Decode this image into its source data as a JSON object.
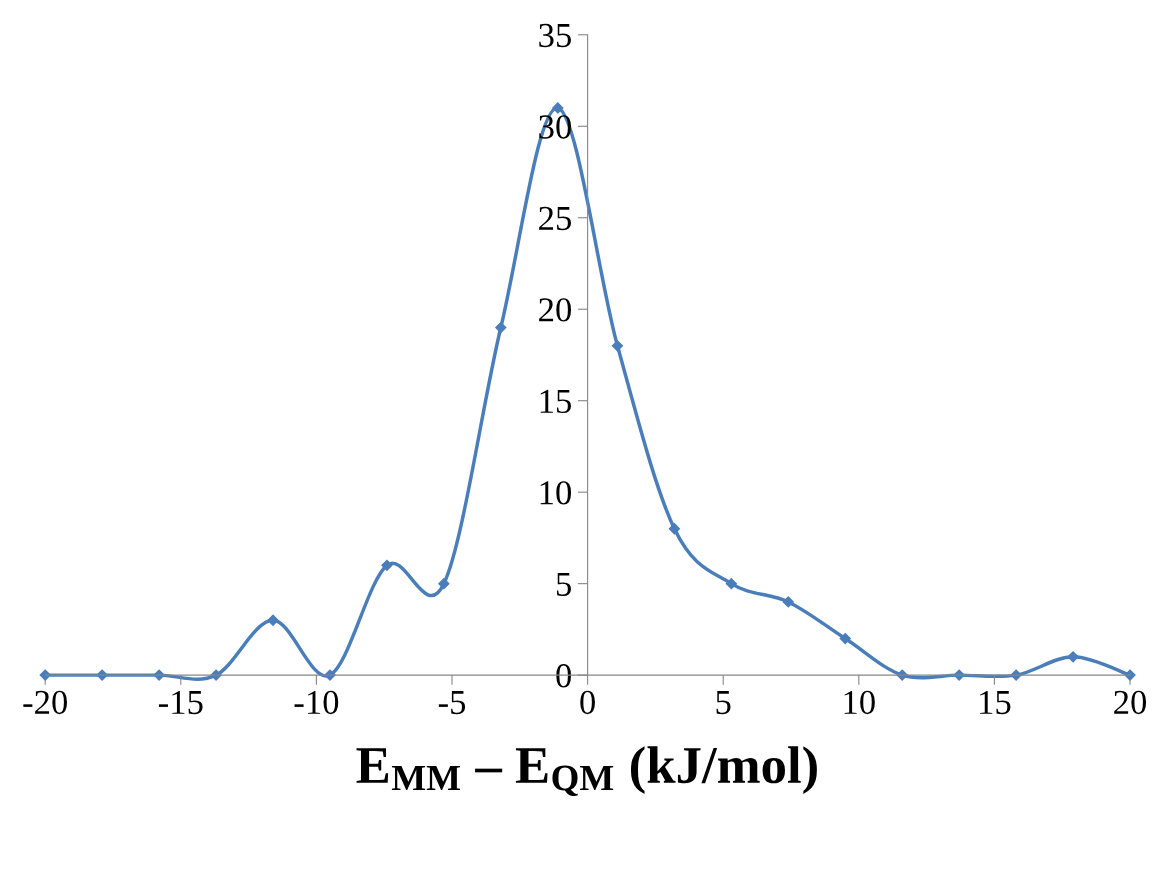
{
  "chart_data": {
    "type": "line",
    "xlabel": "E$_{MM}$ – E$_{QM}$ (kJ/mol)",
    "x": [
      -20,
      -17.9,
      -15.8,
      -13.7,
      -11.6,
      -9.5,
      -7.4,
      -5.3,
      -3.2,
      -1.1,
      1.1,
      3.2,
      5.3,
      7.4,
      9.5,
      11.6,
      13.7,
      15.8,
      17.9,
      20
    ],
    "series": [
      {
        "color": "#4a7ebb",
        "values": [
          0,
          0,
          0,
          0,
          3,
          0,
          6,
          5,
          19,
          31,
          18,
          8,
          5,
          4,
          2,
          0,
          0,
          0,
          1,
          0
        ]
      }
    ],
    "xlim": [
      -20,
      20
    ],
    "xticks": [
      -20,
      -15,
      -10,
      -5,
      0,
      5,
      10,
      15,
      20
    ],
    "ylim": [
      0,
      35
    ],
    "yticks": [
      0,
      5,
      10,
      15,
      20,
      25,
      30,
      35
    ],
    "grid": false,
    "legend": false,
    "marker": "diamond",
    "line_style": "solid"
  }
}
